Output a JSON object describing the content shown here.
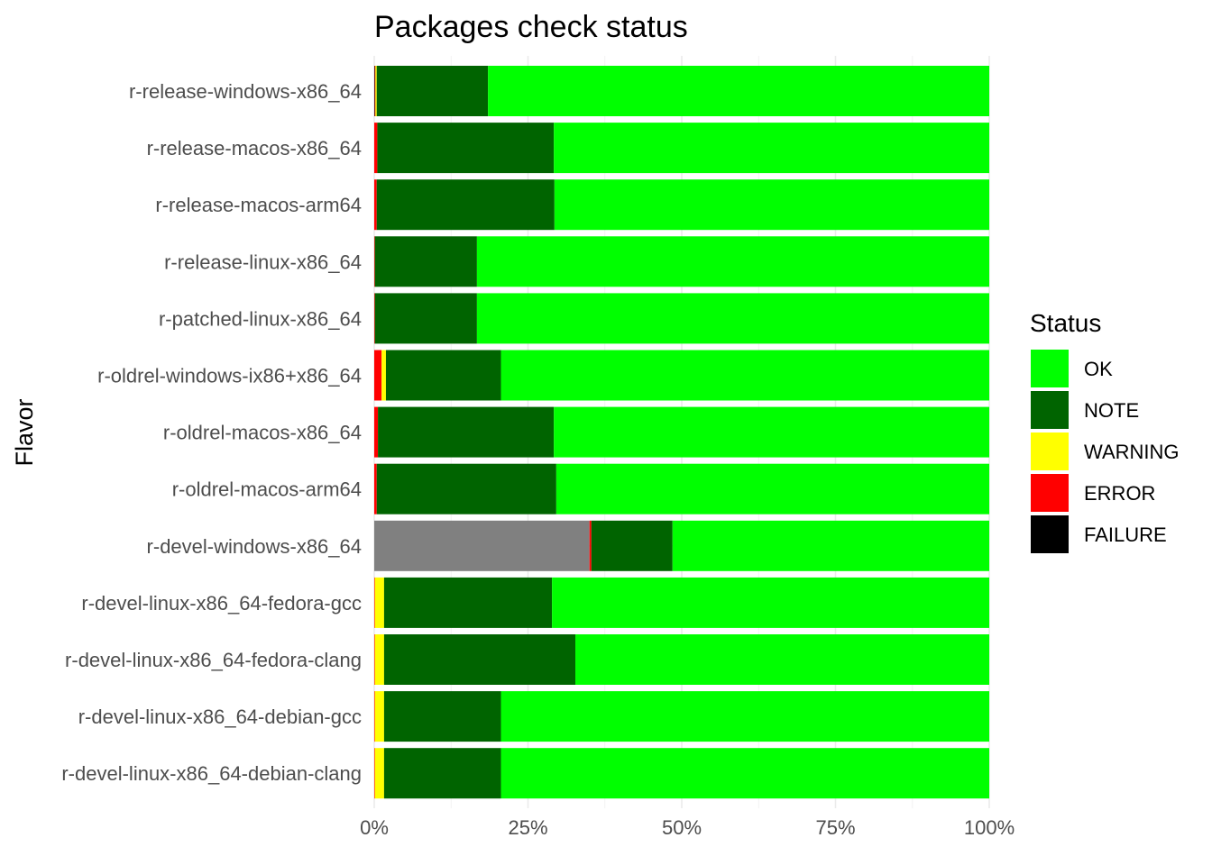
{
  "chart_data": {
    "type": "bar",
    "orientation": "horizontal",
    "stacked": true,
    "title": "Packages check status",
    "xlabel": "",
    "ylabel": "Flavor",
    "xlim": [
      0,
      100
    ],
    "x_ticks": [
      0,
      25,
      50,
      75,
      100
    ],
    "x_tick_labels": [
      "0%",
      "25%",
      "50%",
      "75%",
      "100%"
    ],
    "grid": true,
    "legend": {
      "title": "Status",
      "placement": "right",
      "entries": [
        {
          "label": "OK",
          "color": "#00ff00"
        },
        {
          "label": "NOTE",
          "color": "#006400"
        },
        {
          "label": "WARNING",
          "color": "#ffff00"
        },
        {
          "label": "ERROR",
          "color": "#ff0000"
        },
        {
          "label": "FAILURE",
          "color": "#000000"
        }
      ]
    },
    "stack_colors": {
      "FAILURE": "#000000",
      "UNKNOWN": "#808080",
      "ERROR": "#ff0000",
      "WARNING": "#ffff00",
      "NOTE": "#006400",
      "OK": "#00ff00"
    },
    "categories": [
      "r-release-windows-x86_64",
      "r-release-macos-x86_64",
      "r-release-macos-arm64",
      "r-release-linux-x86_64",
      "r-patched-linux-x86_64",
      "r-oldrel-windows-ix86+x86_64",
      "r-oldrel-macos-x86_64",
      "r-oldrel-macos-arm64",
      "r-devel-windows-x86_64",
      "r-devel-linux-x86_64-fedora-gcc",
      "r-devel-linux-x86_64-fedora-clang",
      "r-devel-linux-x86_64-debian-gcc",
      "r-devel-linux-x86_64-debian-clang"
    ],
    "segments": [
      {
        "FAILURE": 0.1,
        "UNKNOWN": 0,
        "ERROR": 0.1,
        "WARNING": 0.2,
        "NOTE": 18.1,
        "OK": 81.5
      },
      {
        "FAILURE": 0,
        "UNKNOWN": 0,
        "ERROR": 0.5,
        "WARNING": 0,
        "NOTE": 28.7,
        "OK": 70.8
      },
      {
        "FAILURE": 0,
        "UNKNOWN": 0,
        "ERROR": 0.4,
        "WARNING": 0,
        "NOTE": 28.9,
        "OK": 70.7
      },
      {
        "FAILURE": 0,
        "UNKNOWN": 0,
        "ERROR": 0.1,
        "WARNING": 0,
        "NOTE": 16.6,
        "OK": 83.3
      },
      {
        "FAILURE": 0,
        "UNKNOWN": 0,
        "ERROR": 0.1,
        "WARNING": 0,
        "NOTE": 16.6,
        "OK": 83.3
      },
      {
        "FAILURE": 0,
        "UNKNOWN": 0,
        "ERROR": 1.2,
        "WARNING": 0.7,
        "NOTE": 18.7,
        "OK": 79.4
      },
      {
        "FAILURE": 0,
        "UNKNOWN": 0,
        "ERROR": 0.6,
        "WARNING": 0,
        "NOTE": 28.6,
        "OK": 70.8
      },
      {
        "FAILURE": 0,
        "UNKNOWN": 0,
        "ERROR": 0.4,
        "WARNING": 0,
        "NOTE": 29.2,
        "OK": 70.4
      },
      {
        "FAILURE": 0,
        "UNKNOWN": 35.0,
        "ERROR": 0.3,
        "WARNING": 0,
        "NOTE": 13.2,
        "OK": 51.5
      },
      {
        "FAILURE": 0,
        "UNKNOWN": 0,
        "ERROR": 0.1,
        "WARNING": 1.5,
        "NOTE": 27.3,
        "OK": 71.1
      },
      {
        "FAILURE": 0,
        "UNKNOWN": 0,
        "ERROR": 0.1,
        "WARNING": 1.5,
        "NOTE": 31.1,
        "OK": 67.3
      },
      {
        "FAILURE": 0,
        "UNKNOWN": 0,
        "ERROR": 0.1,
        "WARNING": 1.5,
        "NOTE": 19.0,
        "OK": 79.4
      },
      {
        "FAILURE": 0,
        "UNKNOWN": 0,
        "ERROR": 0.1,
        "WARNING": 1.5,
        "NOTE": 19.0,
        "OK": 79.4
      }
    ]
  }
}
